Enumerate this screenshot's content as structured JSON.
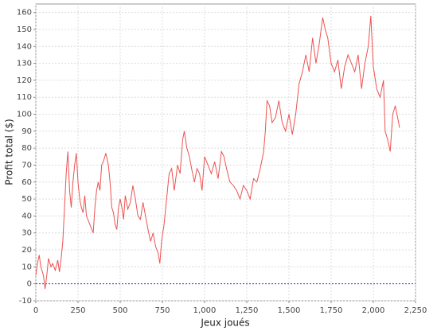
{
  "chart_data": {
    "type": "line",
    "xlabel": "Jeux joués",
    "ylabel": "Profit total ($)",
    "x": [
      0,
      10,
      20,
      30,
      45,
      55,
      65,
      75,
      90,
      100,
      115,
      130,
      140,
      150,
      160,
      170,
      180,
      190,
      200,
      210,
      220,
      230,
      240,
      250,
      260,
      270,
      280,
      290,
      300,
      320,
      340,
      350,
      360,
      370,
      380,
      390,
      400,
      415,
      430,
      440,
      450,
      460,
      470,
      480,
      490,
      500,
      510,
      520,
      530,
      545,
      560,
      575,
      590,
      605,
      620,
      635,
      650,
      665,
      680,
      695,
      710,
      725,
      735,
      745,
      760,
      775,
      790,
      805,
      820,
      840,
      855,
      870,
      880,
      895,
      910,
      925,
      940,
      955,
      970,
      985,
      1000,
      1020,
      1040,
      1060,
      1080,
      1100,
      1115,
      1130,
      1150,
      1170,
      1190,
      1210,
      1230,
      1250,
      1270,
      1290,
      1310,
      1330,
      1350,
      1360,
      1370,
      1385,
      1400,
      1420,
      1440,
      1460,
      1480,
      1500,
      1520,
      1540,
      1560,
      1580,
      1600,
      1620,
      1640,
      1660,
      1680,
      1700,
      1715,
      1730,
      1750,
      1770,
      1790,
      1810,
      1830,
      1850,
      1870,
      1890,
      1910,
      1930,
      1950,
      1970,
      1985,
      2000,
      2020,
      2040,
      2060,
      2070,
      2085,
      2100,
      2115,
      2130,
      2150,
      2155
    ],
    "series": [
      {
        "name": "Profit",
        "color": "#ec5252",
        "values": [
          5,
          12,
          17,
          10,
          5,
          -3,
          5,
          15,
          10,
          12,
          8,
          14,
          7,
          15,
          25,
          45,
          65,
          78,
          55,
          45,
          60,
          70,
          77,
          60,
          50,
          45,
          42,
          52,
          40,
          35,
          30,
          45,
          55,
          60,
          55,
          70,
          72,
          77,
          70,
          60,
          45,
          42,
          35,
          32,
          45,
          50,
          45,
          38,
          52,
          44,
          48,
          58,
          50,
          40,
          38,
          48,
          40,
          32,
          25,
          30,
          22,
          18,
          12,
          25,
          35,
          50,
          65,
          68,
          55,
          70,
          65,
          85,
          90,
          80,
          75,
          67,
          60,
          68,
          65,
          55,
          75,
          70,
          65,
          72,
          62,
          78,
          75,
          68,
          60,
          58,
          55,
          50,
          58,
          55,
          50,
          62,
          60,
          68,
          78,
          90,
          108,
          105,
          95,
          98,
          108,
          95,
          90,
          100,
          88,
          100,
          118,
          125,
          135,
          125,
          145,
          130,
          142,
          157,
          150,
          145,
          130,
          125,
          132,
          115,
          128,
          135,
          130,
          125,
          135,
          115,
          130,
          140,
          158,
          128,
          115,
          110,
          120,
          90,
          85,
          78,
          100,
          105,
          95,
          92
        ]
      }
    ],
    "xlim": [
      0,
      2250
    ],
    "ylim": [
      -10,
      165
    ],
    "xticks": [
      0,
      250,
      500,
      750,
      {
        "value": 1000,
        "label": "1,000"
      },
      {
        "value": 1250,
        "label": "1,250"
      },
      {
        "value": 1500,
        "label": "1,500"
      },
      {
        "value": 1750,
        "label": "1,750"
      },
      {
        "value": 2000,
        "label": "2,000"
      },
      {
        "value": 2250,
        "label": "2,250"
      }
    ],
    "yticks": [
      -10,
      0,
      10,
      20,
      30,
      40,
      50,
      60,
      70,
      80,
      90,
      100,
      110,
      120,
      130,
      140,
      150,
      160
    ],
    "grid": true,
    "zero_line": true
  }
}
